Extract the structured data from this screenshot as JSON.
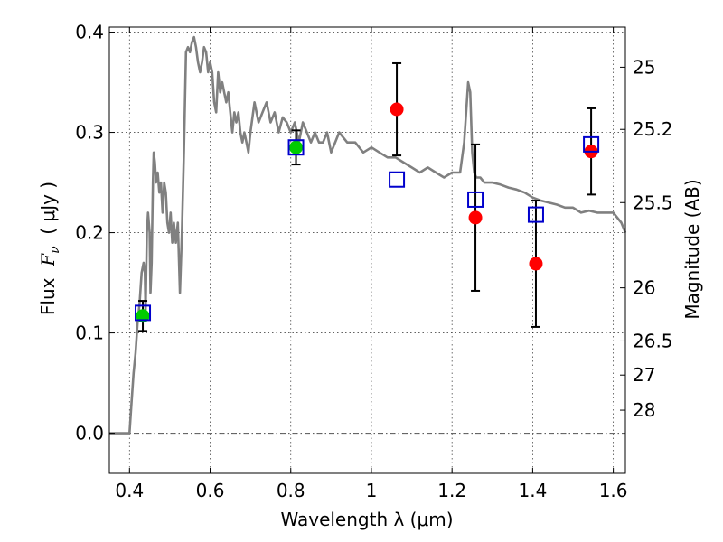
{
  "chart_data": {
    "type": "scatter",
    "title": "",
    "xlabel": "Wavelength  λ (μm)",
    "ylabel_left_prefix": "Flux  ",
    "ylabel_left_symbol": "F",
    "ylabel_left_subscript": "ν",
    "ylabel_left_suffix": "  ( μJy )",
    "ylabel_right": "Magnitude (AB)",
    "xlim": [
      0.35,
      1.63
    ],
    "ylim": [
      -0.04,
      0.405
    ],
    "grid": true,
    "x_ticks": [
      0.4,
      0.6,
      0.8,
      1.0,
      1.2,
      1.4,
      1.6
    ],
    "x_tick_labels": [
      "0.4",
      "0.6",
      "0.8",
      "1",
      "1.2",
      "1.4",
      "1.6"
    ],
    "y_ticks": [
      0.0,
      0.1,
      0.2,
      0.3,
      0.4
    ],
    "y_tick_labels": [
      "0.0",
      "0.1",
      "0.2",
      "0.3",
      "0.4"
    ],
    "right_axis_ticks": [
      {
        "label": "25",
        "flux": 0.365
      },
      {
        "label": "25.2",
        "flux": 0.303
      },
      {
        "label": "25.5",
        "flux": 0.23
      },
      {
        "label": "26",
        "flux": 0.145
      },
      {
        "label": "26.5",
        "flux": 0.092
      },
      {
        "label": "27",
        "flux": 0.058
      },
      {
        "label": "28",
        "flux": 0.023
      }
    ],
    "series": [
      {
        "style": "line",
        "color": "#808080",
        "x": [
          0.35,
          0.39,
          0.4,
          0.405,
          0.41,
          0.415,
          0.42,
          0.425,
          0.43,
          0.435,
          0.438,
          0.44,
          0.443,
          0.446,
          0.45,
          0.452,
          0.455,
          0.458,
          0.46,
          0.463,
          0.466,
          0.47,
          0.474,
          0.478,
          0.482,
          0.486,
          0.49,
          0.494,
          0.498,
          0.502,
          0.506,
          0.51,
          0.515,
          0.52,
          0.525,
          0.53,
          0.535,
          0.54,
          0.545,
          0.55,
          0.555,
          0.56,
          0.565,
          0.57,
          0.575,
          0.58,
          0.585,
          0.59,
          0.595,
          0.6,
          0.605,
          0.61,
          0.615,
          0.62,
          0.625,
          0.63,
          0.635,
          0.64,
          0.645,
          0.65,
          0.655,
          0.66,
          0.665,
          0.67,
          0.675,
          0.68,
          0.685,
          0.69,
          0.695,
          0.7,
          0.71,
          0.72,
          0.73,
          0.74,
          0.75,
          0.76,
          0.77,
          0.78,
          0.79,
          0.8,
          0.81,
          0.82,
          0.83,
          0.84,
          0.85,
          0.86,
          0.87,
          0.88,
          0.89,
          0.9,
          0.92,
          0.94,
          0.96,
          0.98,
          1.0,
          1.02,
          1.04,
          1.06,
          1.08,
          1.1,
          1.12,
          1.14,
          1.16,
          1.18,
          1.2,
          1.22,
          1.23,
          1.24,
          1.245,
          1.25,
          1.255,
          1.26,
          1.27,
          1.28,
          1.3,
          1.32,
          1.34,
          1.36,
          1.38,
          1.4,
          1.42,
          1.44,
          1.46,
          1.48,
          1.5,
          1.52,
          1.54,
          1.56,
          1.58,
          1.6,
          1.62,
          1.63
        ],
        "y": [
          0.0,
          0.0,
          0.0,
          0.03,
          0.06,
          0.08,
          0.11,
          0.13,
          0.16,
          0.17,
          0.16,
          0.12,
          0.2,
          0.22,
          0.2,
          0.14,
          0.17,
          0.25,
          0.28,
          0.27,
          0.25,
          0.26,
          0.24,
          0.25,
          0.22,
          0.25,
          0.24,
          0.21,
          0.2,
          0.22,
          0.19,
          0.21,
          0.19,
          0.21,
          0.14,
          0.2,
          0.28,
          0.38,
          0.385,
          0.38,
          0.39,
          0.395,
          0.385,
          0.37,
          0.36,
          0.37,
          0.385,
          0.38,
          0.36,
          0.37,
          0.36,
          0.33,
          0.32,
          0.36,
          0.34,
          0.35,
          0.34,
          0.33,
          0.34,
          0.32,
          0.3,
          0.32,
          0.31,
          0.32,
          0.3,
          0.29,
          0.3,
          0.29,
          0.28,
          0.3,
          0.33,
          0.31,
          0.32,
          0.33,
          0.31,
          0.32,
          0.3,
          0.315,
          0.31,
          0.3,
          0.31,
          0.29,
          0.31,
          0.3,
          0.29,
          0.3,
          0.29,
          0.29,
          0.3,
          0.28,
          0.3,
          0.29,
          0.29,
          0.28,
          0.285,
          0.28,
          0.275,
          0.275,
          0.27,
          0.265,
          0.26,
          0.265,
          0.26,
          0.255,
          0.26,
          0.26,
          0.29,
          0.35,
          0.34,
          0.28,
          0.26,
          0.255,
          0.255,
          0.25,
          0.25,
          0.248,
          0.245,
          0.243,
          0.24,
          0.235,
          0.232,
          0.23,
          0.228,
          0.225,
          0.225,
          0.22,
          0.222,
          0.22,
          0.22,
          0.22,
          0.21,
          0.2
        ]
      },
      {
        "style": "open-square",
        "color": "#0000cc",
        "x": [
          0.433,
          0.813,
          1.063,
          1.258,
          1.408,
          1.545
        ],
        "y": [
          0.12,
          0.285,
          0.253,
          0.233,
          0.218,
          0.288
        ]
      },
      {
        "style": "filled-circle",
        "color": "#00cc00",
        "x": [
          0.433,
          0.813
        ],
        "y": [
          0.117,
          0.285
        ],
        "err": [
          0.015,
          0.017
        ]
      },
      {
        "style": "filled-circle",
        "color": "#ff0000",
        "x": [
          1.063,
          1.258,
          1.408,
          1.545
        ],
        "y": [
          0.323,
          0.215,
          0.169,
          0.281
        ],
        "err": [
          0.046,
          0.073,
          0.063,
          0.043
        ]
      }
    ]
  }
}
